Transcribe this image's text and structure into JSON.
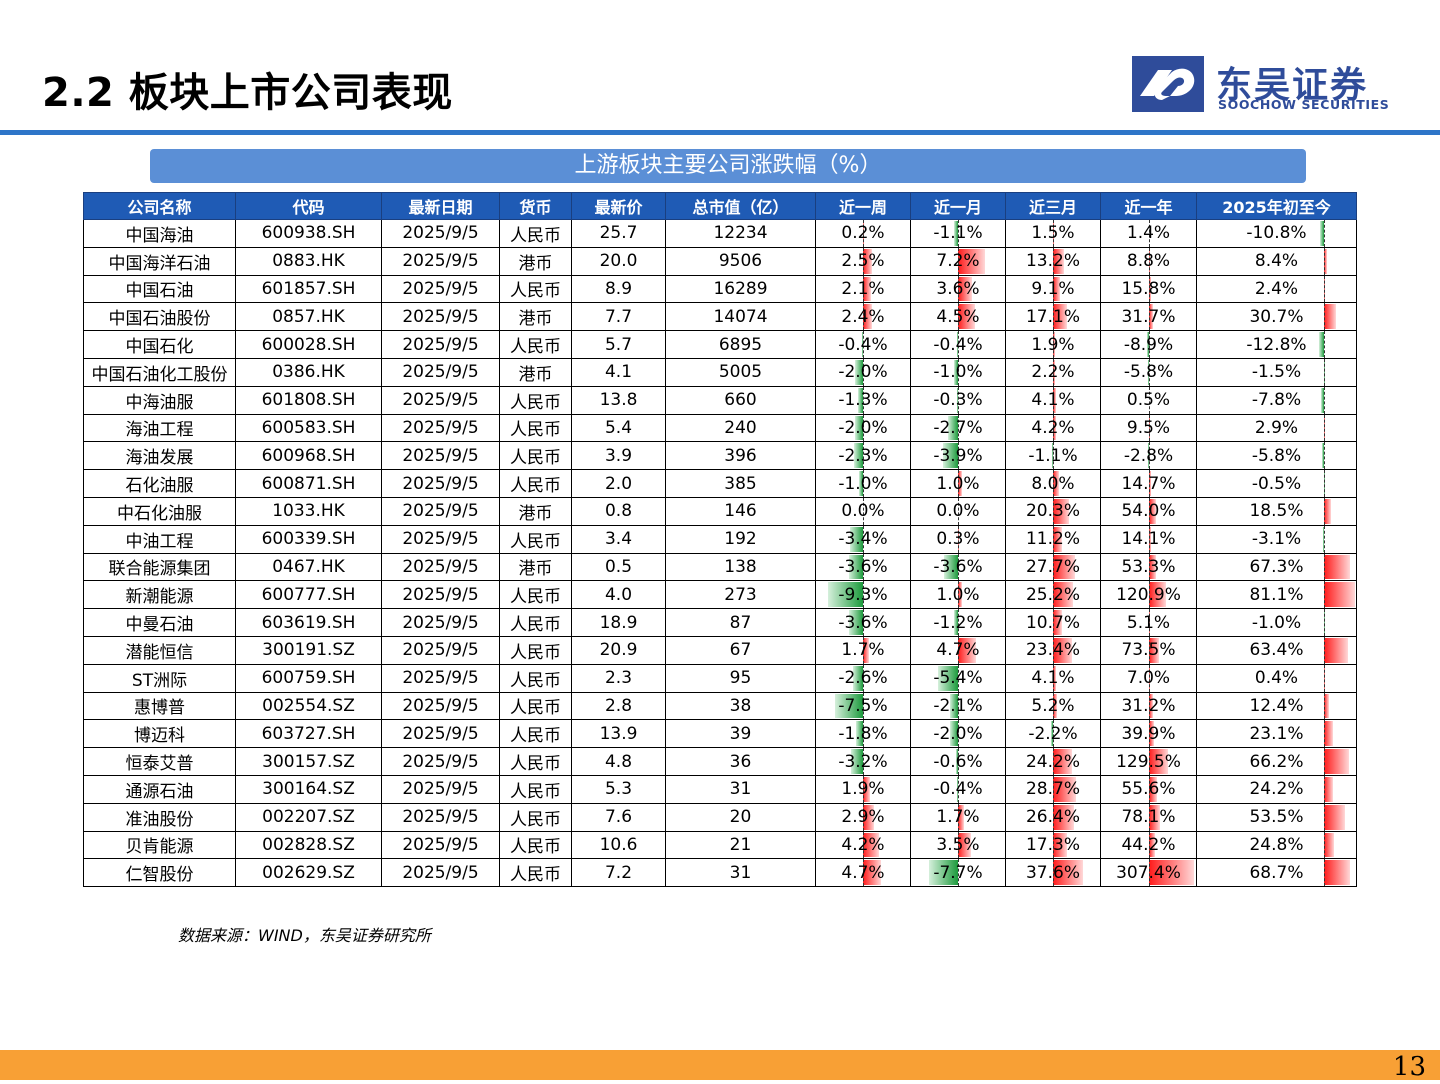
{
  "header": {
    "title": "2.2 板块上市公司表现",
    "logo_cn": "东吴证券",
    "logo_en": "SOOCHOW SECURITIES"
  },
  "table_title": "上游板块主要公司涨跌幅（%）",
  "columns": [
    "公司名称",
    "代码",
    "最新日期",
    "货币",
    "最新价",
    "总市值（亿）",
    "近一周",
    "近一月",
    "近三月",
    "近一年",
    "2025年初至今"
  ],
  "rows": [
    [
      "中国海油",
      "600938.SH",
      "2025/9/5",
      "人民币",
      "25.7",
      "12234",
      "0.2%",
      "-1.1%",
      "1.5%",
      "1.4%",
      "-10.8%"
    ],
    [
      "中国海洋石油",
      "0883.HK",
      "2025/9/5",
      "港币",
      "20.0",
      "9506",
      "2.5%",
      "7.2%",
      "13.2%",
      "8.8%",
      "8.4%"
    ],
    [
      "中国石油",
      "601857.SH",
      "2025/9/5",
      "人民币",
      "8.9",
      "16289",
      "2.1%",
      "3.6%",
      "9.1%",
      "15.8%",
      "2.4%"
    ],
    [
      "中国石油股份",
      "0857.HK",
      "2025/9/5",
      "港币",
      "7.7",
      "14074",
      "2.4%",
      "4.5%",
      "17.1%",
      "31.7%",
      "30.7%"
    ],
    [
      "中国石化",
      "600028.SH",
      "2025/9/5",
      "人民币",
      "5.7",
      "6895",
      "-0.4%",
      "-0.4%",
      "1.9%",
      "-8.9%",
      "-12.8%"
    ],
    [
      "中国石油化工股份",
      "0386.HK",
      "2025/9/5",
      "港币",
      "4.1",
      "5005",
      "-2.0%",
      "-1.0%",
      "2.2%",
      "-5.8%",
      "-1.5%"
    ],
    [
      "中海油服",
      "601808.SH",
      "2025/9/5",
      "人民币",
      "13.8",
      "660",
      "-1.3%",
      "-0.3%",
      "4.1%",
      "0.5%",
      "-7.8%"
    ],
    [
      "海油工程",
      "600583.SH",
      "2025/9/5",
      "人民币",
      "5.4",
      "240",
      "-2.0%",
      "-2.7%",
      "4.2%",
      "9.5%",
      "2.9%"
    ],
    [
      "海油发展",
      "600968.SH",
      "2025/9/5",
      "人民币",
      "3.9",
      "396",
      "-2.3%",
      "-3.9%",
      "-1.1%",
      "-2.8%",
      "-5.8%"
    ],
    [
      "石化油服",
      "600871.SH",
      "2025/9/5",
      "人民币",
      "2.0",
      "385",
      "-1.0%",
      "1.0%",
      "8.0%",
      "14.7%",
      "-0.5%"
    ],
    [
      "中石化油服",
      "1033.HK",
      "2025/9/5",
      "港币",
      "0.8",
      "146",
      "0.0%",
      "0.0%",
      "20.3%",
      "54.0%",
      "18.5%"
    ],
    [
      "中油工程",
      "600339.SH",
      "2025/9/5",
      "人民币",
      "3.4",
      "192",
      "-3.4%",
      "0.3%",
      "11.2%",
      "14.1%",
      "-3.1%"
    ],
    [
      "联合能源集团",
      "0467.HK",
      "2025/9/5",
      "港币",
      "0.5",
      "138",
      "-3.6%",
      "-3.6%",
      "27.7%",
      "53.3%",
      "67.3%"
    ],
    [
      "新潮能源",
      "600777.SH",
      "2025/9/5",
      "人民币",
      "4.0",
      "273",
      "-9.3%",
      "1.0%",
      "25.2%",
      "120.9%",
      "81.1%"
    ],
    [
      "中曼石油",
      "603619.SH",
      "2025/9/5",
      "人民币",
      "18.9",
      "87",
      "-3.6%",
      "-1.2%",
      "10.7%",
      "5.1%",
      "-1.0%"
    ],
    [
      "潜能恒信",
      "300191.SZ",
      "2025/9/5",
      "人民币",
      "20.9",
      "67",
      "1.7%",
      "4.7%",
      "23.4%",
      "73.5%",
      "63.4%"
    ],
    [
      "ST洲际",
      "600759.SH",
      "2025/9/5",
      "人民币",
      "2.3",
      "95",
      "-2.6%",
      "-5.4%",
      "4.1%",
      "7.0%",
      "0.4%"
    ],
    [
      "惠博普",
      "002554.SZ",
      "2025/9/5",
      "人民币",
      "2.8",
      "38",
      "-7.5%",
      "-2.1%",
      "5.2%",
      "31.2%",
      "12.4%"
    ],
    [
      "博迈科",
      "603727.SH",
      "2025/9/5",
      "人民币",
      "13.9",
      "39",
      "-1.8%",
      "-2.0%",
      "-2.2%",
      "39.9%",
      "23.1%"
    ],
    [
      "恒泰艾普",
      "300157.SZ",
      "2025/9/5",
      "人民币",
      "4.8",
      "36",
      "-3.2%",
      "-0.6%",
      "24.2%",
      "129.5%",
      "66.2%"
    ],
    [
      "通源石油",
      "300164.SZ",
      "2025/9/5",
      "人民币",
      "5.3",
      "31",
      "1.9%",
      "-0.4%",
      "28.7%",
      "55.6%",
      "24.2%"
    ],
    [
      "准油股份",
      "002207.SZ",
      "2025/9/5",
      "人民币",
      "7.6",
      "20",
      "2.9%",
      "1.7%",
      "26.4%",
      "78.1%",
      "53.5%"
    ],
    [
      "贝肯能源",
      "002828.SZ",
      "2025/9/5",
      "人民币",
      "10.6",
      "21",
      "4.2%",
      "3.5%",
      "17.3%",
      "44.2%",
      "24.8%"
    ],
    [
      "仁智股份",
      "002629.SZ",
      "2025/9/5",
      "人民币",
      "7.2",
      "31",
      "4.7%",
      "-7.7%",
      "37.6%",
      "307.4%",
      "68.7%"
    ]
  ],
  "source": "数据来源：WIND，东吴证券研究所",
  "page_number": "13",
  "colors": {
    "positive_bar": "#ff1a1a",
    "negative_bar": "#1c9a3c",
    "header_fill": "#1f5bb5",
    "accent_rule": "#2e75c8",
    "footer": "#f8a035",
    "logo": "#2f4c9a"
  }
}
